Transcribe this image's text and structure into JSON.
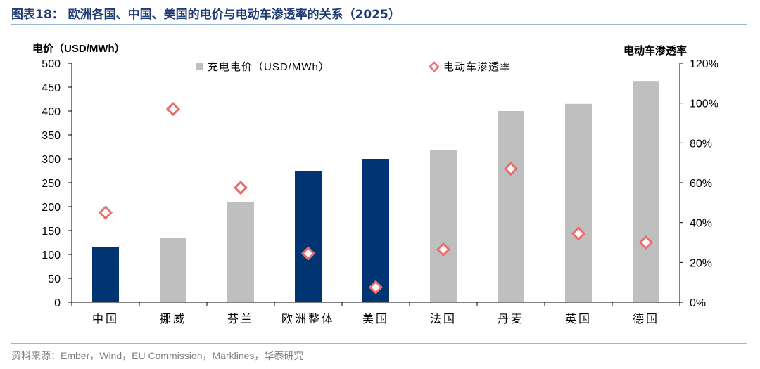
{
  "header": {
    "title": "图表18： 欧洲各国、中国、美国的电价与电动车渗透率的关系（2025）"
  },
  "footer": {
    "source": "资料来源：Ember，Wind，EU Commission，Marklines，华泰研究"
  },
  "colors": {
    "highlight_bar": "#003473",
    "normal_bar": "#bfbfbf",
    "marker": "#e96d6d"
  },
  "chart_data": {
    "type": "bar",
    "categories": [
      "中国",
      "挪威",
      "芬兰",
      "欧洲整体",
      "美国",
      "法国",
      "丹麦",
      "英国",
      "德国"
    ],
    "highlight": [
      true,
      false,
      false,
      true,
      true,
      false,
      false,
      false,
      false
    ],
    "series": [
      {
        "name": "充电电价（USD/MWh）",
        "type": "bar",
        "axis": "left",
        "values": [
          115,
          135,
          210,
          275,
          300,
          318,
          400,
          415,
          463
        ]
      },
      {
        "name": "电动车渗透率",
        "type": "scatter",
        "axis": "right",
        "values": [
          0.45,
          0.97,
          0.575,
          0.245,
          0.075,
          0.265,
          0.67,
          0.345,
          0.3
        ]
      }
    ],
    "ylabel_left": "电价（USD/MWh）",
    "ylabel_right": "电动车渗透率",
    "ylim_left": [
      0,
      500
    ],
    "ylim_right": [
      0,
      1.2
    ],
    "yticks_left": [
      "0",
      "50",
      "100",
      "150",
      "200",
      "250",
      "300",
      "350",
      "400",
      "450",
      "500"
    ],
    "yticks_right": [
      "0%",
      "20%",
      "40%",
      "60%",
      "80%",
      "100%",
      "120%"
    ],
    "legend": [
      "充电电价（USD/MWh）",
      "电动车渗透率"
    ],
    "legend_position": "top-center",
    "grid": false
  }
}
